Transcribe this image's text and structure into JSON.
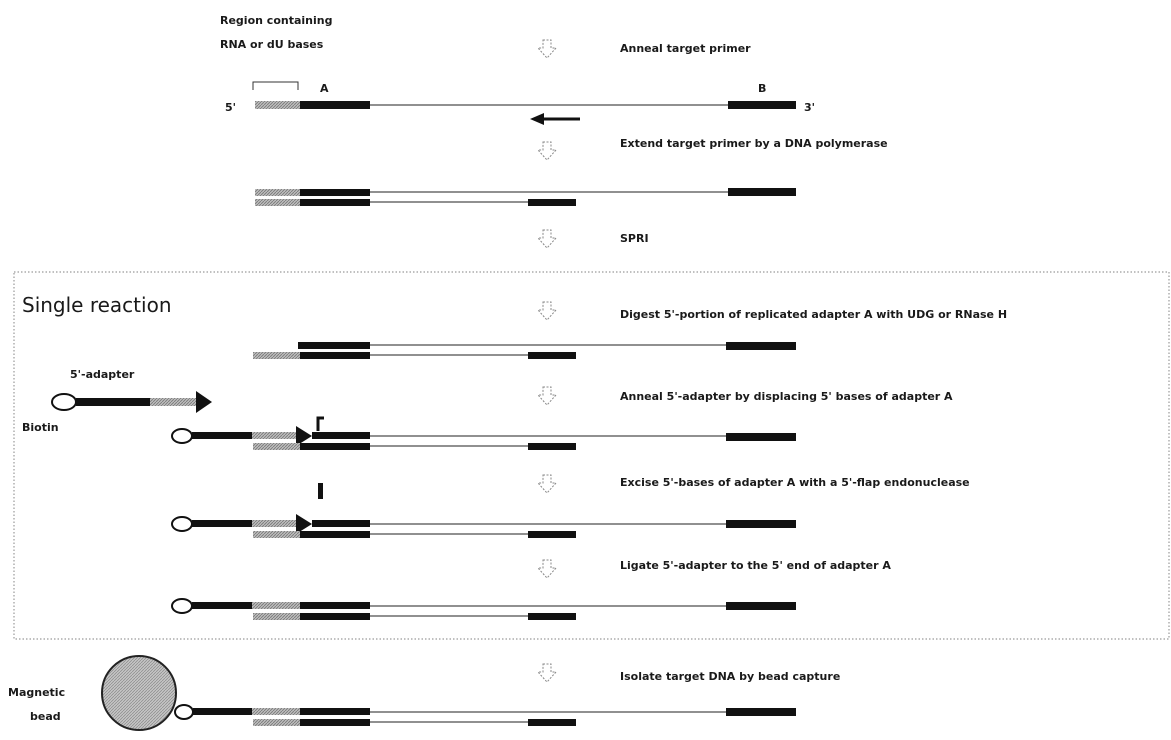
{
  "labels": {
    "region": [
      "Region containing",
      "RNA or dU bases"
    ],
    "adapter_a": "A",
    "adapter_b": "B",
    "five_prime": "5'",
    "three_prime": "3'",
    "single_reaction": "Single reaction",
    "five_adapter": "5'-adapter",
    "biotin": "Biotin",
    "magnetic_bead": [
      "Magnetic",
      "bead"
    ]
  },
  "steps": [
    "Anneal  target primer",
    "Extend  target primer by a DNA polymerase",
    "SPRI",
    "Digest 5'-portion of replicated adapter A with UDG or RNase H",
    "Anneal  5'-adapter by displacing 5' bases of adapter A",
    "Excise 5'-bases  of adapter A with a 5'-flap endonuclease",
    "Ligate 5'-adapter to the 5' end of adapter A",
    "Isolate target DNA by bead capture"
  ]
}
